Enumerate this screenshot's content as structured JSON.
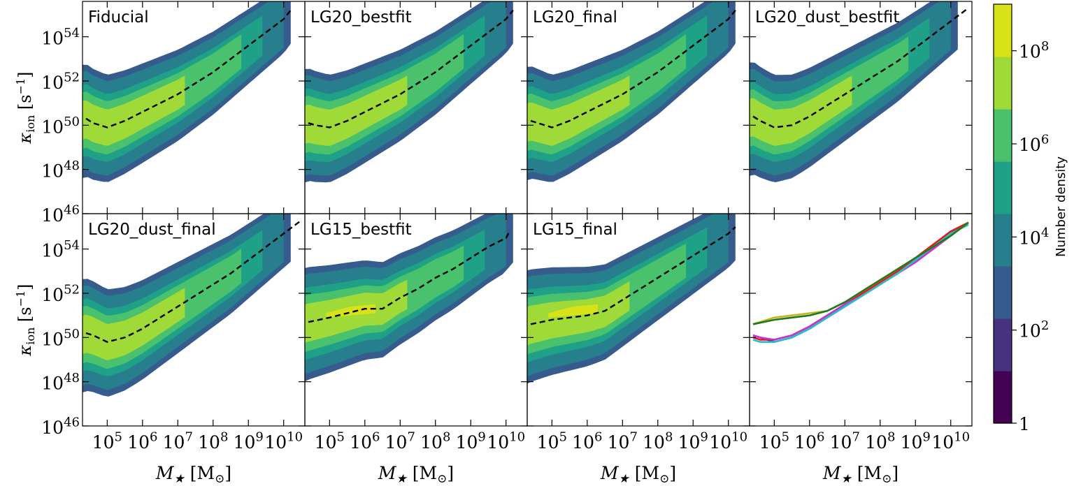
{
  "colors": {
    "levels": [
      "#440154",
      "#46327e",
      "#365c8d",
      "#277f8e",
      "#1fa187",
      "#4ac16d",
      "#a0da39",
      "#d8e219"
    ],
    "curves": [
      "#1a1adb",
      "#e61919",
      "#c833d1",
      "#25c1c9",
      "#c8b41c",
      "#1f7a1f"
    ]
  },
  "ylabel": "κ_ion [s^−1]",
  "xlabel": "M_★ [M_⊙]",
  "colorbar": {
    "label": "Number density",
    "ticks": [
      {
        "exp": 0,
        "label": "1"
      },
      {
        "exp": 2,
        "label": "10^2"
      },
      {
        "exp": 4,
        "label": "10^4"
      },
      {
        "exp": 6,
        "label": "10^6"
      },
      {
        "exp": 8,
        "label": "10^8"
      }
    ]
  },
  "chart_data": [
    {
      "type": "heatmap",
      "title": "Fiducial",
      "series": [
        {
          "x": [
            4.4,
            4.6,
            5.0,
            5.5,
            6.0,
            6.5,
            7.0,
            7.5,
            8.0,
            8.5,
            9.0,
            9.5,
            10.0,
            10.2
          ],
          "y": [
            50.3,
            50.1,
            49.9,
            50.2,
            50.6,
            51.0,
            51.4,
            51.9,
            52.4,
            53.0,
            53.6,
            54.2,
            54.8,
            55.2
          ]
        }
      ]
    },
    {
      "type": "heatmap",
      "title": "LG20_bestfit",
      "series": [
        {
          "x": [
            4.4,
            4.6,
            5.0,
            5.5,
            6.0,
            6.5,
            7.0,
            7.5,
            8.0,
            8.5,
            9.0,
            9.5,
            10.0,
            10.2
          ],
          "y": [
            50.1,
            50.0,
            49.9,
            50.2,
            50.6,
            51.0,
            51.4,
            51.9,
            52.4,
            53.0,
            53.6,
            54.2,
            54.8,
            55.2
          ]
        }
      ]
    },
    {
      "type": "heatmap",
      "title": "LG20_final",
      "series": [
        {
          "x": [
            4.4,
            4.6,
            5.0,
            5.5,
            6.0,
            6.5,
            7.0,
            7.5,
            8.0,
            8.5,
            9.0,
            9.5,
            10.0,
            10.2
          ],
          "y": [
            50.2,
            50.1,
            49.9,
            50.2,
            50.6,
            51.0,
            51.4,
            51.9,
            52.4,
            53.0,
            53.6,
            54.2,
            54.8,
            55.2
          ]
        }
      ]
    },
    {
      "type": "heatmap",
      "title": "LG20_dust_bestfit",
      "series": [
        {
          "x": [
            4.4,
            4.6,
            5.0,
            5.5,
            6.0,
            6.5,
            7.0,
            7.5,
            8.0,
            8.5,
            9.0,
            9.5,
            10.0,
            10.5
          ],
          "y": [
            50.4,
            50.2,
            49.9,
            50.0,
            50.4,
            50.9,
            51.4,
            51.9,
            52.4,
            52.9,
            53.5,
            54.1,
            54.7,
            55.3
          ]
        }
      ]
    },
    {
      "type": "heatmap",
      "title": "LG20_dust_final",
      "series": [
        {
          "x": [
            4.4,
            4.6,
            5.0,
            5.5,
            6.0,
            6.5,
            7.0,
            7.5,
            8.0,
            8.5,
            9.0,
            9.5,
            10.0,
            10.5
          ],
          "y": [
            50.2,
            50.1,
            49.8,
            50.0,
            50.4,
            50.9,
            51.4,
            51.9,
            52.4,
            52.9,
            53.5,
            54.1,
            54.7,
            55.3
          ]
        }
      ]
    },
    {
      "type": "heatmap",
      "title": "LG15_bestfit",
      "series": [
        {
          "x": [
            4.4,
            5.0,
            5.5,
            6.0,
            6.5,
            7.0,
            7.5,
            8.0,
            8.5,
            9.0,
            9.5,
            10.0,
            10.1
          ],
          "y": [
            50.7,
            50.9,
            51.1,
            51.3,
            51.3,
            51.8,
            52.2,
            52.7,
            53.1,
            53.6,
            54.1,
            54.5,
            54.8
          ]
        }
      ]
    },
    {
      "type": "heatmap",
      "title": "LG15_final",
      "series": [
        {
          "x": [
            4.4,
            5.0,
            5.5,
            6.0,
            6.5,
            7.0,
            7.5,
            8.0,
            8.5,
            9.0,
            9.5,
            10.0,
            10.2
          ],
          "y": [
            50.6,
            50.8,
            50.9,
            51.0,
            51.2,
            51.7,
            52.2,
            52.7,
            53.2,
            53.7,
            54.2,
            54.7,
            55.0
          ]
        }
      ]
    },
    {
      "type": "line",
      "title": "",
      "series": [
        {
          "x": [
            4.4,
            4.6,
            5.0,
            5.5,
            6.0,
            6.5,
            7.0,
            7.5,
            8.0,
            8.5,
            9.0,
            9.5,
            10.0,
            10.5
          ],
          "y": [
            50.1,
            50.0,
            49.8,
            50.0,
            50.4,
            50.9,
            51.4,
            51.9,
            52.4,
            52.9,
            53.5,
            54.1,
            54.7,
            55.2
          ]
        },
        {
          "x": [
            4.4,
            4.6,
            5.0,
            5.5,
            6.0,
            6.5,
            7.0,
            7.5,
            8.0,
            8.5,
            9.0,
            9.5,
            10.0,
            10.5
          ],
          "y": [
            50.0,
            49.9,
            49.9,
            50.1,
            50.5,
            51.0,
            51.5,
            52.0,
            52.5,
            53.0,
            53.6,
            54.2,
            54.8,
            55.2
          ]
        },
        {
          "x": [
            4.4,
            4.6,
            5.0,
            5.5,
            6.0,
            6.5,
            7.0,
            7.5,
            8.0,
            8.5,
            9.0,
            9.5,
            10.0,
            10.5
          ],
          "y": [
            50.1,
            50.0,
            49.9,
            50.1,
            50.5,
            51.0,
            51.5,
            51.9,
            52.4,
            52.9,
            53.4,
            54.0,
            54.6,
            55.2
          ]
        },
        {
          "x": [
            4.4,
            4.6,
            5.0,
            5.5,
            6.0,
            6.5,
            7.0,
            7.5,
            8.0,
            8.5,
            9.0,
            9.5,
            10.0,
            10.5
          ],
          "y": [
            49.9,
            49.8,
            49.8,
            50.0,
            50.4,
            50.9,
            51.4,
            51.9,
            52.4,
            52.9,
            53.5,
            54.1,
            54.7,
            55.1
          ]
        },
        {
          "x": [
            4.4,
            5.0,
            5.5,
            6.0,
            6.5,
            7.0,
            7.5,
            8.0,
            8.5,
            9.0,
            9.5,
            10.0,
            10.5
          ],
          "y": [
            50.6,
            50.9,
            51.0,
            51.1,
            51.2,
            51.6,
            52.1,
            52.6,
            53.1,
            53.6,
            54.1,
            54.6,
            55.2
          ]
        },
        {
          "x": [
            4.4,
            5.0,
            5.5,
            6.0,
            6.5,
            7.0,
            7.5,
            8.0,
            8.5,
            9.0,
            9.5,
            10.0,
            10.5
          ],
          "y": [
            50.6,
            50.8,
            50.9,
            51.0,
            51.2,
            51.6,
            52.1,
            52.6,
            53.1,
            53.6,
            54.1,
            54.6,
            55.2
          ]
        }
      ]
    }
  ],
  "axes": {
    "xlim": [
      4.3,
      10.6
    ],
    "ylim": [
      46,
      55.6
    ],
    "xticks": [
      {
        "v": 5,
        "label": "10^5"
      },
      {
        "v": 6,
        "label": "10^6"
      },
      {
        "v": 7,
        "label": "10^7"
      },
      {
        "v": 8,
        "label": "10^8"
      },
      {
        "v": 9,
        "label": "10^9"
      },
      {
        "v": 10,
        "label": "10^10"
      }
    ],
    "yticks": [
      {
        "v": 46,
        "label": "10^46"
      },
      {
        "v": 48,
        "label": "10^48"
      },
      {
        "v": 50,
        "label": "10^50"
      },
      {
        "v": 52,
        "label": "10^52"
      },
      {
        "v": 54,
        "label": "10^54"
      }
    ]
  }
}
